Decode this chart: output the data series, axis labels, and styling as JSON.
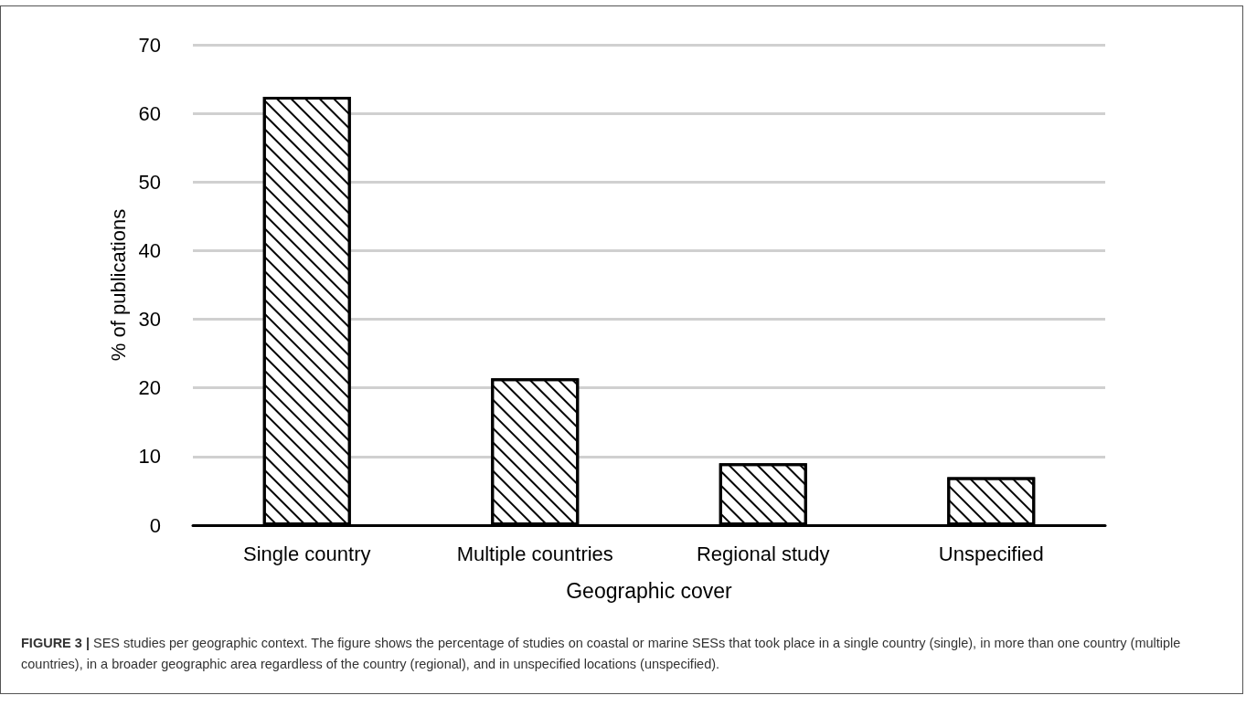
{
  "chart_data": {
    "type": "bar",
    "xlabel": "Geographic cover",
    "ylabel": "% of publications",
    "categories": [
      "Single country",
      "Multiple countries",
      "Regional study",
      "Unspecified"
    ],
    "values": [
      62.4,
      21.4,
      9.0,
      7.0
    ],
    "color": "#ffffff",
    "ylim": [
      0,
      70
    ],
    "yticks": [
      0,
      10,
      20,
      30,
      40,
      50,
      60,
      70
    ],
    "grid": "y",
    "annotations": [
      "FIGURE 3 | SES studies per geographic context. The figure shows the percentage of studies on coastal or marine SESs that took place in a single country (single), in more than one country (multiple countries), in a broader geographic area regardless of the country (regional), and in unspecified locations (unspecified)."
    ]
  }
}
